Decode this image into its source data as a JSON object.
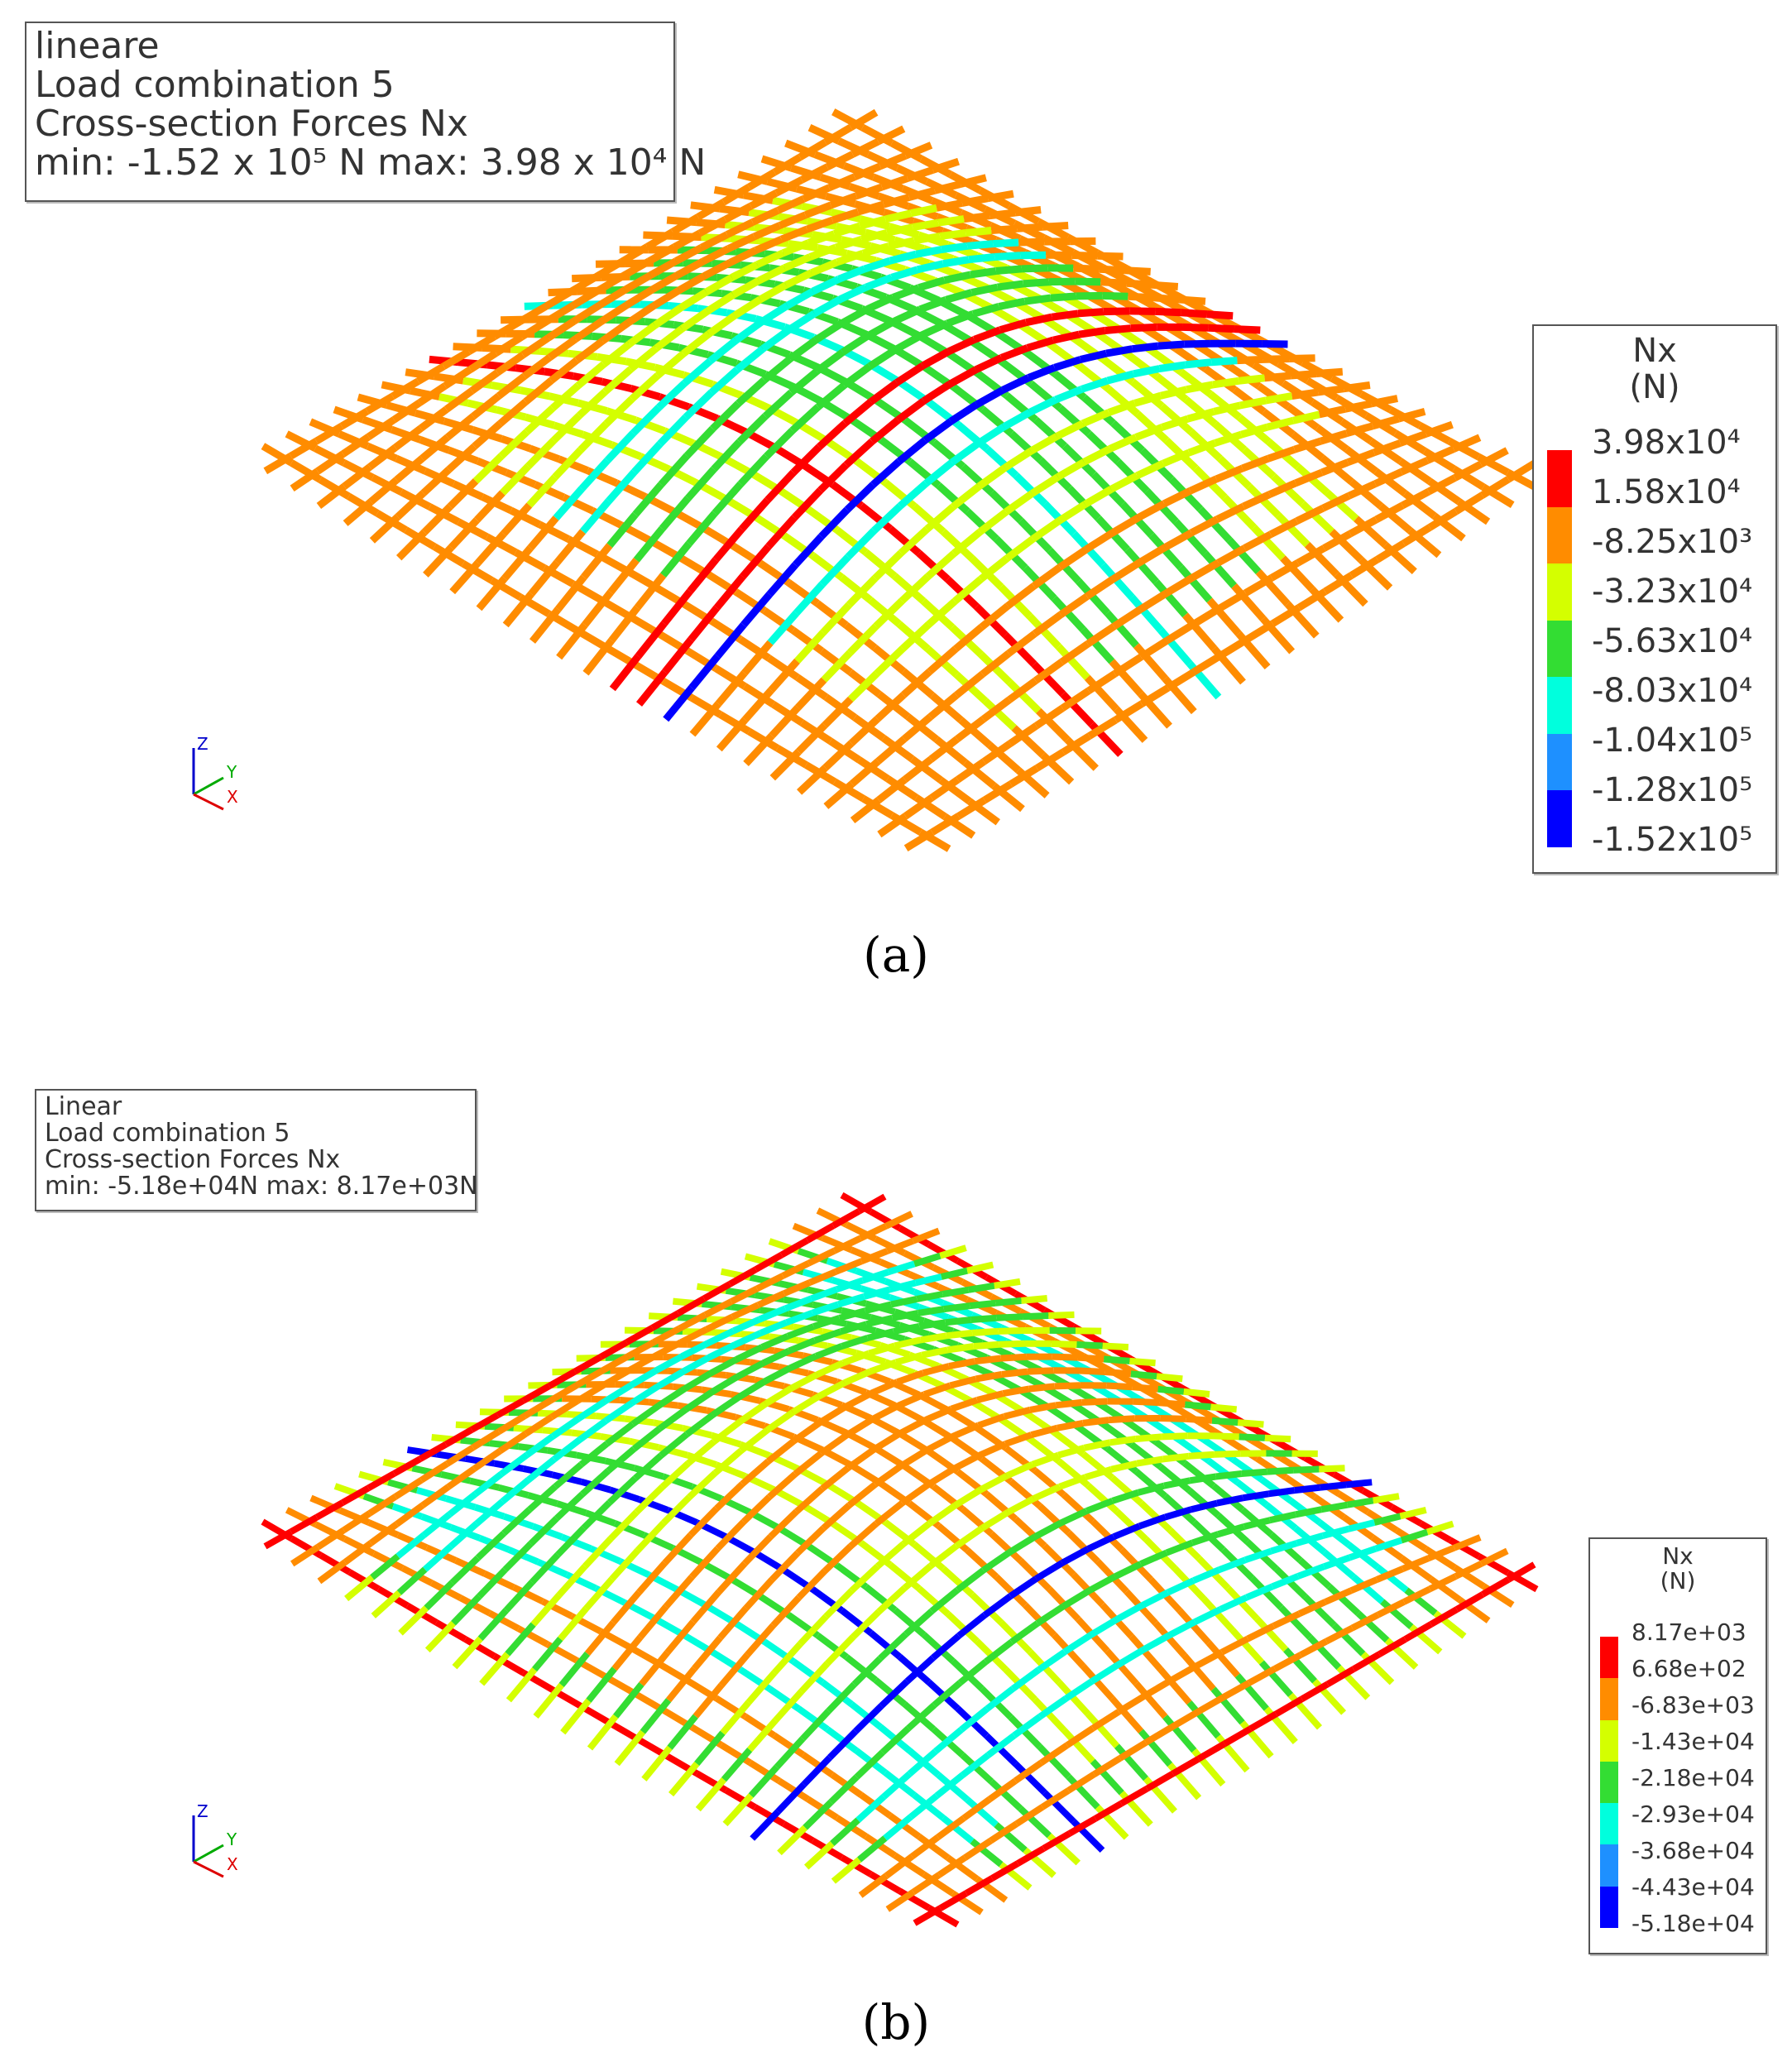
{
  "panel_a": {
    "info": {
      "line1": "lineare",
      "line2": "Load combination 5",
      "line3": "Cross-section Forces Nx",
      "line4": "min: -1.52 x 10⁵ N max: 3.98 x 10⁴ N"
    },
    "legend": {
      "title_line1": "Nx",
      "title_line2": "(N)",
      "ticks": [
        "3.98x10⁴",
        "1.58x10⁴",
        "-8.25x10³",
        "-3.23x10⁴",
        "-5.63x10⁴",
        "-8.03x10⁴",
        "-1.04x10⁵",
        "-1.28x10⁵",
        "-1.52x10⁵"
      ],
      "colors": [
        "#ff0000",
        "#ff8c00",
        "#d4ff00",
        "#33dd33",
        "#00ffdd",
        "#1e90ff",
        "#0000ff"
      ]
    },
    "axes": {
      "z": "Z",
      "y": "Y",
      "x": "X"
    },
    "caption": "(a)"
  },
  "panel_b": {
    "info": {
      "line1": "Linear",
      "line2": "Load combination 5",
      "line3": "Cross-section Forces Nx",
      "line4": "min: -5.18e+04N max: 8.17e+03N"
    },
    "legend": {
      "title_line1": "Nx",
      "title_line2": "(N)",
      "ticks": [
        "8.17e+03",
        "6.68e+02",
        "-6.83e+03",
        "-1.43e+04",
        "-2.18e+04",
        "-2.93e+04",
        "-3.68e+04",
        "-4.43e+04",
        "-5.18e+04"
      ],
      "colors": [
        "#ff0000",
        "#ff8c00",
        "#d4ff00",
        "#33dd33",
        "#00ffdd",
        "#1e90ff",
        "#0000ff"
      ]
    },
    "axes": {
      "z": "Z",
      "y": "Y",
      "x": "X"
    },
    "caption": "(b)"
  }
}
